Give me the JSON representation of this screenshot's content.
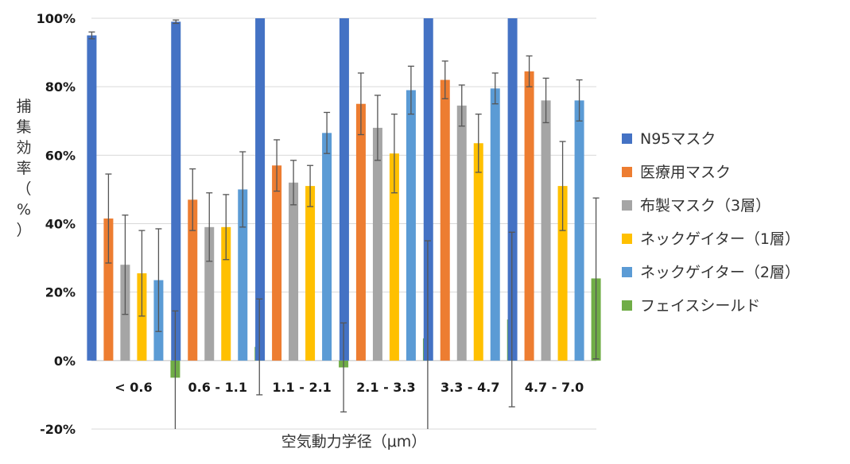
{
  "chart_data": {
    "type": "bar",
    "xlabel": "空気動力学径（μm）",
    "ylabel_chars": [
      "捕",
      "集",
      "効",
      "率",
      "（",
      "%",
      "）"
    ],
    "ylim": [
      -20,
      100
    ],
    "yticks": [
      {
        "value": 100,
        "label": "100%"
      },
      {
        "value": 80,
        "label": "80%"
      },
      {
        "value": 60,
        "label": "60%"
      },
      {
        "value": 40,
        "label": "40%"
      },
      {
        "value": 20,
        "label": "20%"
      },
      {
        "value": 0,
        "label": "0%"
      },
      {
        "value": -20,
        "label": "-20%"
      }
    ],
    "categories": [
      "< 0.6",
      "0.6 - 1.1",
      "1.1 - 2.1",
      "2.1 - 3.3",
      "3.3 - 4.7",
      "4.7 - 7.0"
    ],
    "grid": true,
    "legend_position": "right",
    "series": [
      {
        "name": "N95マスク",
        "color": "#4472C4",
        "values": [
          95,
          99,
          100,
          100,
          100,
          100
        ],
        "errors": [
          1,
          0.5,
          0,
          0,
          0,
          0
        ]
      },
      {
        "name": "医療用マスク",
        "color": "#ED7D31",
        "values": [
          41.5,
          47,
          57,
          75,
          82,
          84.5
        ],
        "errors": [
          13,
          9,
          7.5,
          9,
          5.5,
          4.5
        ]
      },
      {
        "name": "布製マスク（3層）",
        "color": "#A5A5A5",
        "values": [
          28,
          39,
          52,
          68,
          74.5,
          76
        ],
        "errors": [
          14.5,
          10,
          6.5,
          9.5,
          6,
          6.5
        ]
      },
      {
        "name": "ネックゲイター（1層）",
        "color": "#FFC000",
        "values": [
          25.5,
          39,
          51,
          60.5,
          63.5,
          51
        ],
        "errors": [
          12.5,
          9.5,
          6,
          11.5,
          8.5,
          13
        ]
      },
      {
        "name": "ネックゲイター（2層）",
        "color": "#5B9BD5",
        "values": [
          23.5,
          50,
          66.5,
          79,
          79.5,
          76
        ],
        "errors": [
          15,
          11,
          6,
          7,
          4.5,
          6
        ]
      },
      {
        "name": "フェイスシールド",
        "color": "#70AD47",
        "values": [
          -5,
          4,
          -2,
          6.5,
          12,
          24
        ],
        "errors": [
          19.5,
          14,
          13,
          28.5,
          25.5,
          23.5
        ]
      }
    ]
  }
}
